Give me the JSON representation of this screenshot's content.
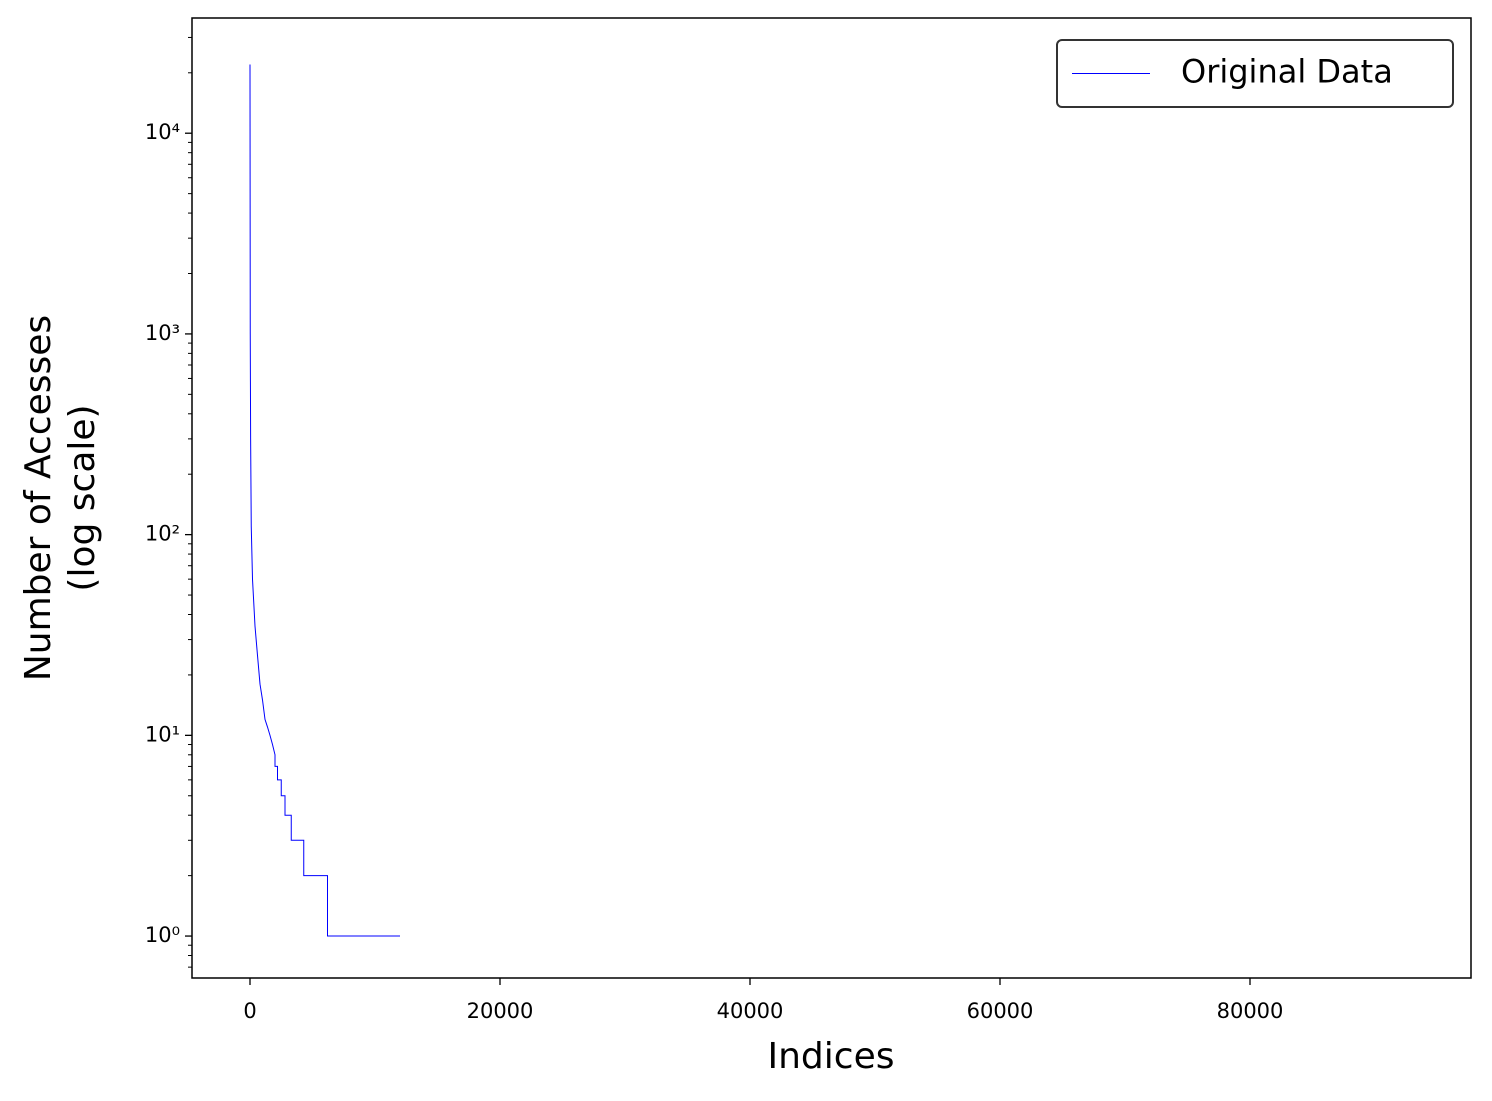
{
  "chart_data": {
    "type": "line",
    "xlabel": "Indices",
    "ylabel": [
      "Number of Accesses",
      "(log scale)"
    ],
    "x": [
      0,
      20,
      50,
      100,
      200,
      400,
      600,
      800,
      1000,
      1200,
      1400,
      1600,
      1800,
      2000,
      2000,
      2200,
      2200,
      2500,
      2500,
      2800,
      2800,
      3300,
      3300,
      4300,
      4300,
      6200,
      6200,
      12000
    ],
    "series": [
      {
        "name": "Original Data",
        "color": "#0000ff",
        "values": [
          22000,
          1000,
          300,
          110,
          60,
          35,
          25,
          18,
          15,
          12,
          11,
          10,
          9,
          8,
          7,
          7,
          6,
          6,
          5,
          5,
          4,
          4,
          3,
          3,
          2,
          2,
          1,
          1
        ]
      }
    ],
    "xlim": [
      -4640,
      97680
    ],
    "xticks": [
      0,
      20000,
      40000,
      60000,
      80000
    ],
    "ylim": [
      0.618,
      37500
    ],
    "log_y": true,
    "yticks": [
      {
        "value": 1,
        "label": "10⁰"
      },
      {
        "value": 10,
        "label": "10¹"
      },
      {
        "value": 100,
        "label": "10²"
      },
      {
        "value": 1000,
        "label": "10³"
      },
      {
        "value": 10000,
        "label": "10⁴"
      }
    ],
    "yminor_ticks": [
      0.7,
      0.8,
      0.9,
      2,
      3,
      4,
      5,
      6,
      7,
      8,
      9,
      20,
      30,
      40,
      50,
      60,
      70,
      80,
      90,
      200,
      300,
      400,
      500,
      600,
      700,
      800,
      900,
      2000,
      3000,
      4000,
      5000,
      6000,
      7000,
      8000,
      9000,
      20000,
      30000
    ],
    "legend": "upper right",
    "grid": false
  }
}
